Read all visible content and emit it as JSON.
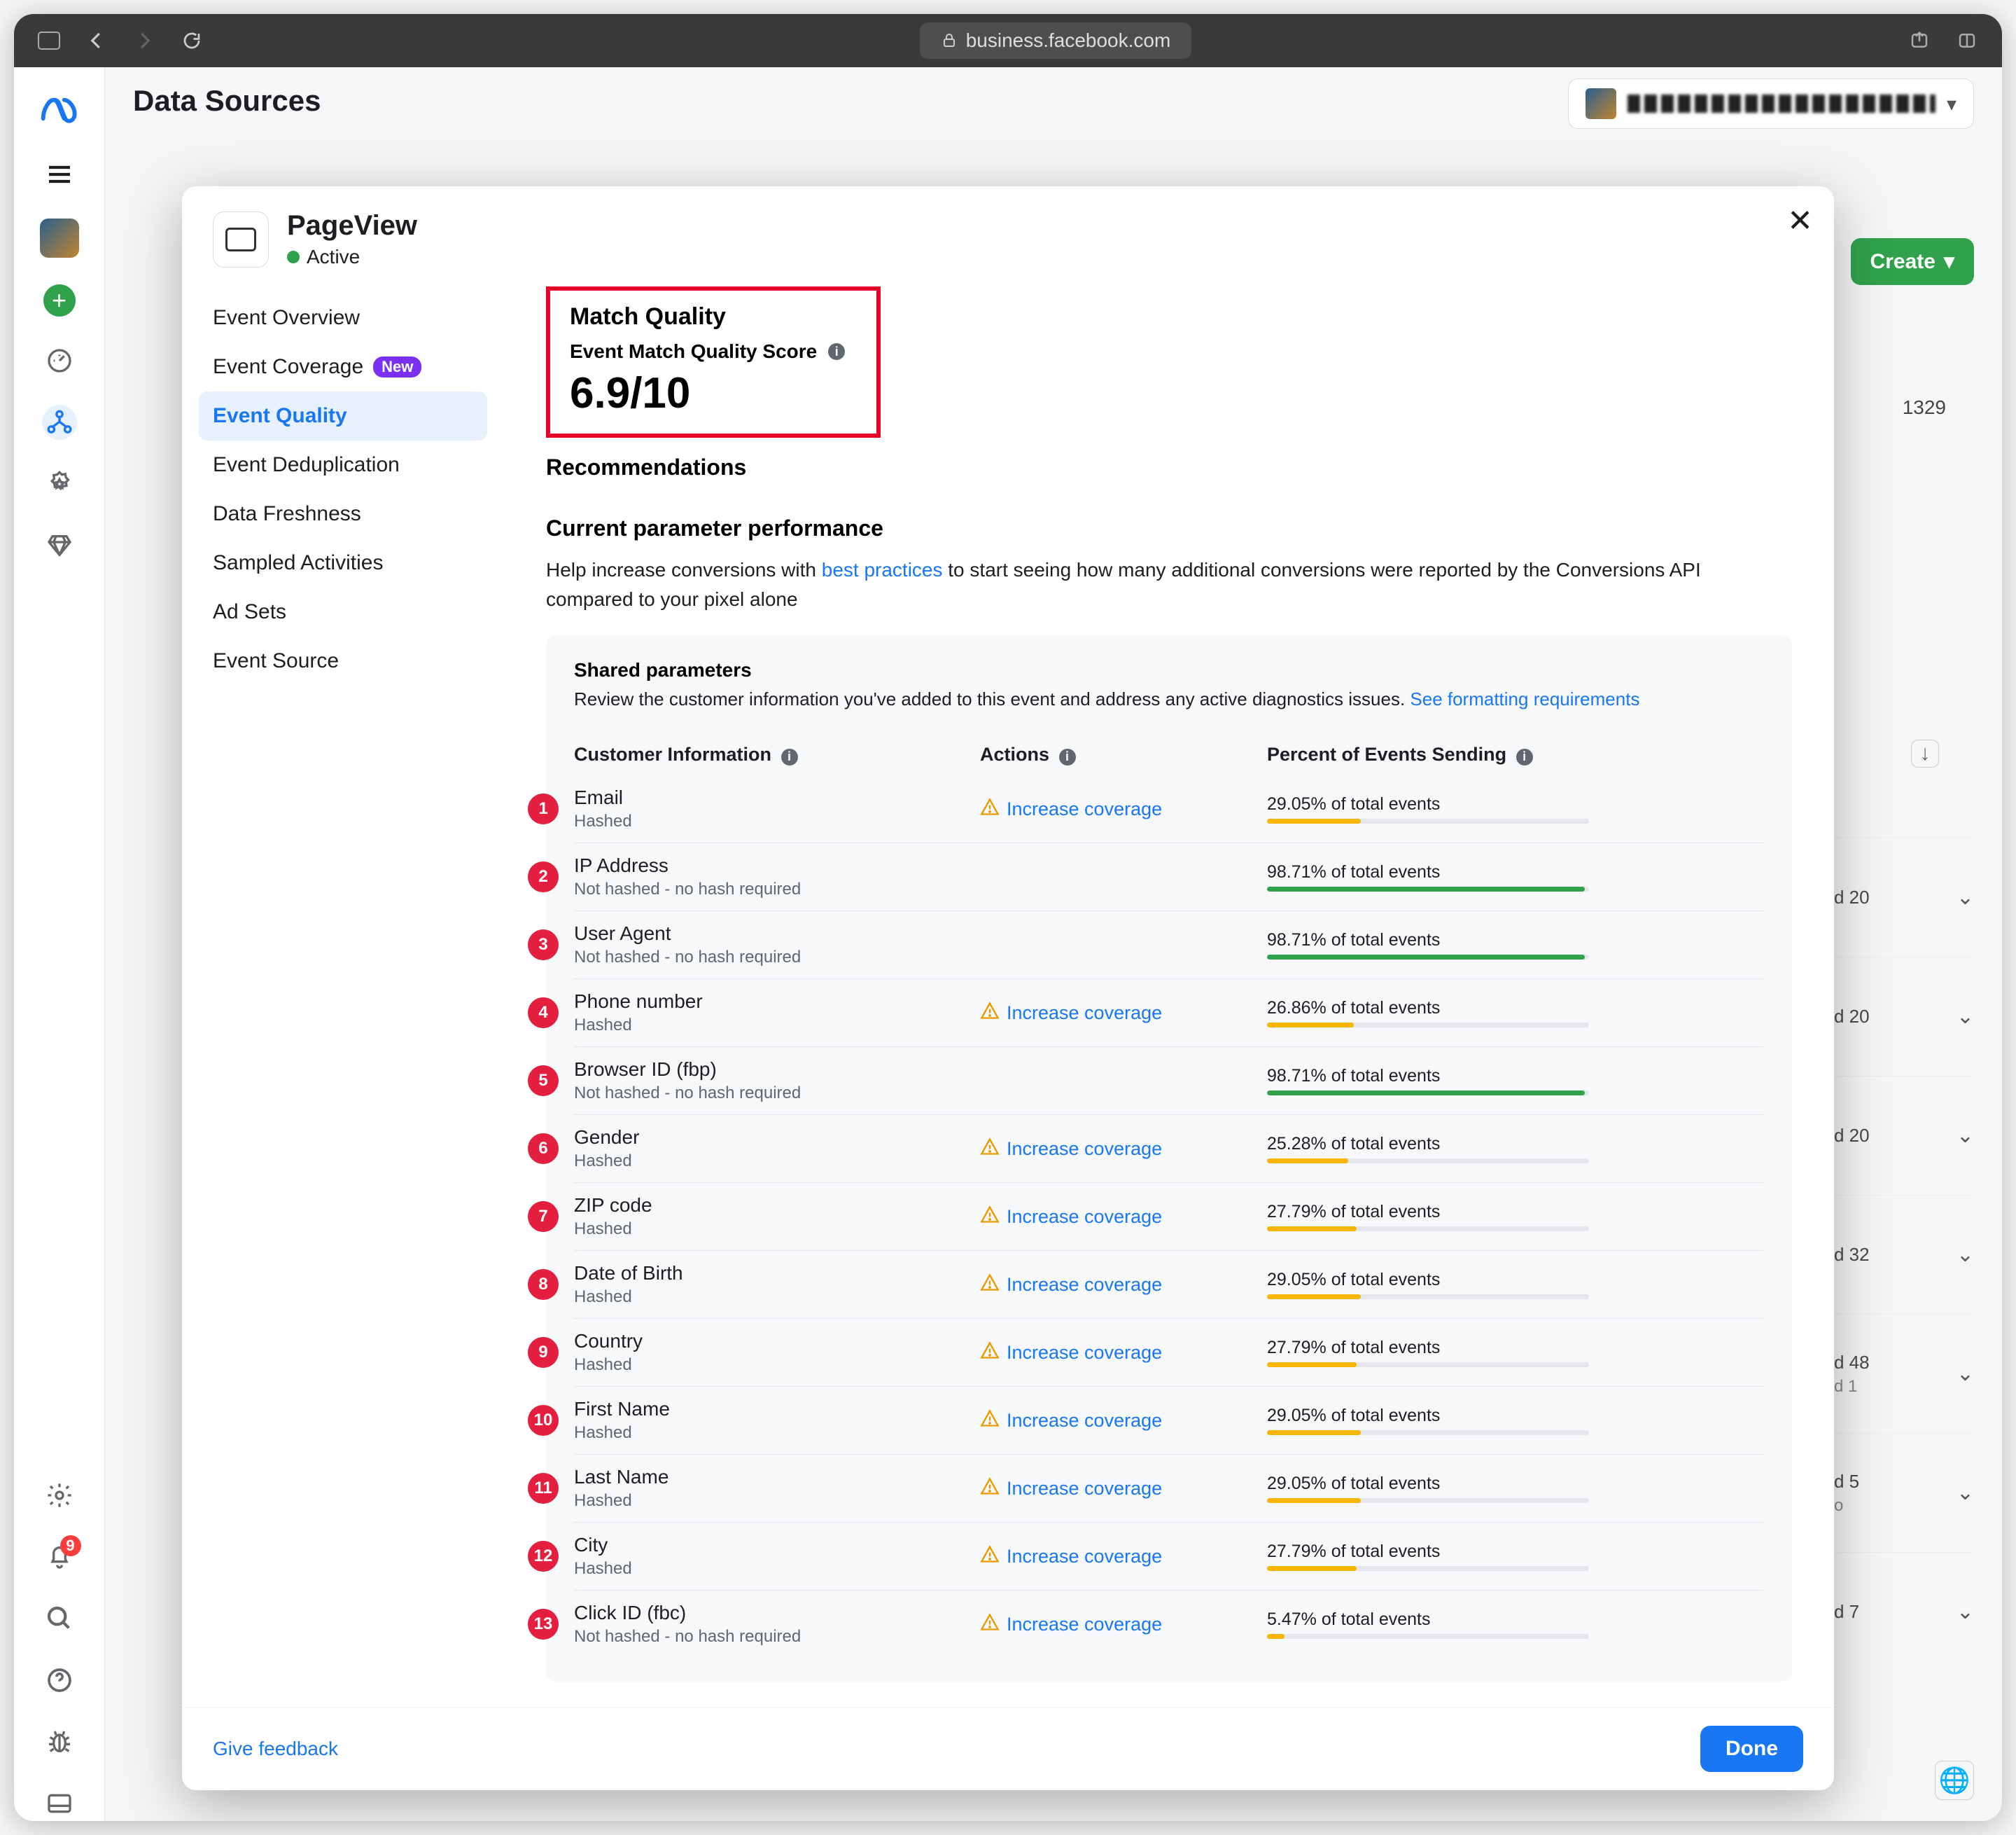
{
  "browser": {
    "url": "business.facebook.com"
  },
  "page": {
    "title": "Data Sources",
    "create_btn": "Create",
    "id_text": "1329"
  },
  "back_rows": [
    {
      "label": "d 20"
    },
    {
      "label": "d 20"
    },
    {
      "label": "d 20"
    },
    {
      "label": "d 32"
    },
    {
      "label": "d 48",
      "sub": "d 1"
    },
    {
      "label": "d 5",
      "sub": "o"
    },
    {
      "label": "d 7"
    }
  ],
  "modal": {
    "event_name": "PageView",
    "status": "Active",
    "close": "✕",
    "nav": [
      {
        "label": "Event Overview"
      },
      {
        "label": "Event Coverage",
        "new": "New"
      },
      {
        "label": "Event Quality",
        "active": true
      },
      {
        "label": "Event Deduplication"
      },
      {
        "label": "Data Freshness"
      },
      {
        "label": "Sampled Activities"
      },
      {
        "label": "Ad Sets"
      },
      {
        "label": "Event Source"
      }
    ],
    "match_quality": {
      "heading": "Match Quality",
      "sub": "Event Match Quality Score",
      "score": "6.9/10"
    },
    "recommendations": "Recommendations",
    "perf_heading": "Current parameter performance",
    "perf_text_a": "Help increase conversions with ",
    "perf_link": "best practices",
    "perf_text_b": " to start seeing how many additional conversions were reported by the Conversions API compared to your pixel alone",
    "shared": {
      "title": "Shared parameters",
      "desc_a": "Review the customer information you've added to this event and address any active diagnostics issues. ",
      "desc_link": "See formatting requirements"
    },
    "columns": {
      "ci": "Customer Information",
      "act": "Actions",
      "pct": "Percent of Events Sending"
    },
    "action_link": "Increase coverage",
    "rows": [
      {
        "n": 1,
        "name": "Email",
        "sub": "Hashed",
        "action": true,
        "pct": 29.05,
        "color": "#f7b500"
      },
      {
        "n": 2,
        "name": "IP Address",
        "sub": "Not hashed - no hash required",
        "action": false,
        "pct": 98.71,
        "color": "#31a24c"
      },
      {
        "n": 3,
        "name": "User Agent",
        "sub": "Not hashed - no hash required",
        "action": false,
        "pct": 98.71,
        "color": "#31a24c"
      },
      {
        "n": 4,
        "name": "Phone number",
        "sub": "Hashed",
        "action": true,
        "pct": 26.86,
        "color": "#f7b500"
      },
      {
        "n": 5,
        "name": "Browser ID (fbp)",
        "sub": "Not hashed - no hash required",
        "action": false,
        "pct": 98.71,
        "color": "#31a24c"
      },
      {
        "n": 6,
        "name": "Gender",
        "sub": "Hashed",
        "action": true,
        "pct": 25.28,
        "color": "#f7b500"
      },
      {
        "n": 7,
        "name": "ZIP code",
        "sub": "Hashed",
        "action": true,
        "pct": 27.79,
        "color": "#f7b500"
      },
      {
        "n": 8,
        "name": "Date of Birth",
        "sub": "Hashed",
        "action": true,
        "pct": 29.05,
        "color": "#f7b500"
      },
      {
        "n": 9,
        "name": "Country",
        "sub": "Hashed",
        "action": true,
        "pct": 27.79,
        "color": "#f7b500"
      },
      {
        "n": 10,
        "name": "First Name",
        "sub": "Hashed",
        "action": true,
        "pct": 29.05,
        "color": "#f7b500"
      },
      {
        "n": 11,
        "name": "Last Name",
        "sub": "Hashed",
        "action": true,
        "pct": 29.05,
        "color": "#f7b500"
      },
      {
        "n": 12,
        "name": "City",
        "sub": "Hashed",
        "action": true,
        "pct": 27.79,
        "color": "#f7b500"
      },
      {
        "n": 13,
        "name": "Click ID (fbc)",
        "sub": "Not hashed - no hash required",
        "action": true,
        "pct": 5.47,
        "color": "#f7b500"
      }
    ],
    "feedback": "Give feedback",
    "done": "Done"
  }
}
